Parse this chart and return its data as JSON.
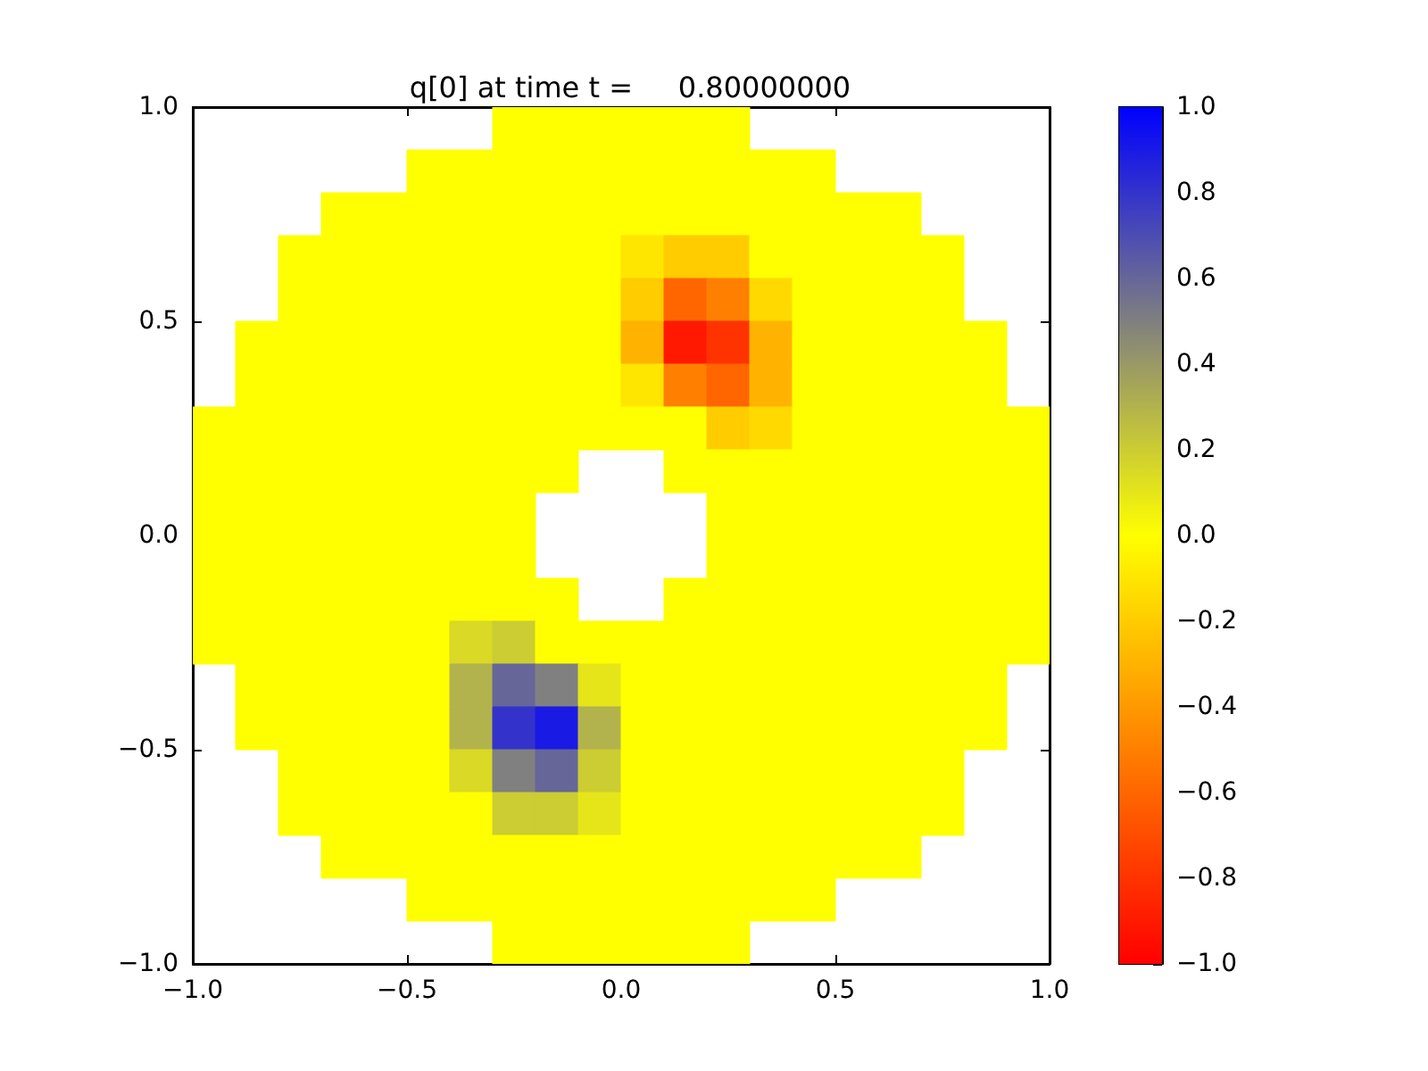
{
  "chart_data": {
    "type": "heatmap",
    "title": "q[0] at time t =     0.80000000",
    "x": [
      -0.95,
      -0.85,
      -0.75,
      -0.65,
      -0.55,
      -0.45,
      -0.35,
      -0.25,
      -0.15,
      -0.05,
      0.05,
      0.15,
      0.25,
      0.35,
      0.45,
      0.55,
      0.65,
      0.75,
      0.85,
      0.95
    ],
    "y": [
      0.95,
      0.85,
      0.75,
      0.65,
      0.55,
      0.45,
      0.35,
      0.25,
      0.15,
      0.05,
      -0.05,
      -0.15,
      -0.25,
      -0.35,
      -0.45,
      -0.55,
      -0.65,
      -0.75,
      -0.85,
      -0.95
    ],
    "cells": [
      [
        null,
        null,
        null,
        null,
        null,
        null,
        null,
        0,
        0,
        0,
        0,
        0,
        0,
        null,
        null,
        null,
        null,
        null,
        null,
        null
      ],
      [
        null,
        null,
        null,
        null,
        null,
        0,
        0,
        0,
        0,
        0,
        0,
        0,
        0,
        0,
        0,
        null,
        null,
        null,
        null,
        null
      ],
      [
        null,
        null,
        null,
        0,
        0,
        0,
        0,
        0,
        0,
        0,
        0,
        0,
        0,
        0,
        0,
        0,
        0,
        null,
        null,
        null
      ],
      [
        null,
        null,
        0,
        0,
        0,
        0,
        0,
        0,
        0,
        0,
        -0.1,
        -0.2,
        -0.2,
        0,
        0,
        0,
        0,
        0,
        null,
        null
      ],
      [
        null,
        null,
        0,
        0,
        0,
        0,
        0,
        0,
        0,
        0,
        -0.2,
        -0.6,
        -0.5,
        -0.15,
        0,
        0,
        0,
        0,
        null,
        null
      ],
      [
        null,
        0,
        0,
        0,
        0,
        0,
        0,
        0,
        0,
        0,
        -0.3,
        -0.9,
        -0.8,
        -0.3,
        0,
        0,
        0,
        0,
        0,
        null
      ],
      [
        null,
        0,
        0,
        0,
        0,
        0,
        0,
        0,
        0,
        0,
        -0.1,
        -0.5,
        -0.6,
        -0.3,
        0,
        0,
        0,
        0,
        0,
        null
      ],
      [
        0,
        0,
        0,
        0,
        0,
        0,
        0,
        0,
        0,
        0,
        0,
        0,
        -0.2,
        -0.15,
        0,
        0,
        0,
        0,
        0,
        0
      ],
      [
        0,
        0,
        0,
        0,
        0,
        0,
        0,
        0,
        0,
        null,
        null,
        0,
        0,
        0,
        0,
        0,
        0,
        0,
        0,
        0
      ],
      [
        0,
        0,
        0,
        0,
        0,
        0,
        0,
        0,
        null,
        null,
        null,
        null,
        0,
        0,
        0,
        0,
        0,
        0,
        0,
        0
      ],
      [
        0,
        0,
        0,
        0,
        0,
        0,
        0,
        0,
        null,
        null,
        null,
        null,
        0,
        0,
        0,
        0,
        0,
        0,
        0,
        0
      ],
      [
        0,
        0,
        0,
        0,
        0,
        0,
        0,
        0,
        0,
        null,
        null,
        0,
        0,
        0,
        0,
        0,
        0,
        0,
        0,
        0
      ],
      [
        0,
        0,
        0,
        0,
        0,
        0,
        0.15,
        0.2,
        0,
        0,
        0,
        0,
        0,
        0,
        0,
        0,
        0,
        0,
        0,
        0
      ],
      [
        null,
        0,
        0,
        0,
        0,
        0,
        0.3,
        0.6,
        0.5,
        0.1,
        0,
        0,
        0,
        0,
        0,
        0,
        0,
        0,
        0,
        null
      ],
      [
        null,
        0,
        0,
        0,
        0,
        0,
        0.3,
        0.8,
        0.9,
        0.3,
        0,
        0,
        0,
        0,
        0,
        0,
        0,
        0,
        0,
        null
      ],
      [
        null,
        null,
        0,
        0,
        0,
        0,
        0.15,
        0.5,
        0.6,
        0.2,
        0,
        0,
        0,
        0,
        0,
        0,
        0,
        0,
        null,
        null
      ],
      [
        null,
        null,
        0,
        0,
        0,
        0,
        0,
        0.2,
        0.2,
        0.1,
        0,
        0,
        0,
        0,
        0,
        0,
        0,
        0,
        null,
        null
      ],
      [
        null,
        null,
        null,
        0,
        0,
        0,
        0,
        0,
        0,
        0,
        0,
        0,
        0,
        0,
        0,
        0,
        0,
        null,
        null,
        null
      ],
      [
        null,
        null,
        null,
        null,
        null,
        0,
        0,
        0,
        0,
        0,
        0,
        0,
        0,
        0,
        0,
        null,
        null,
        null,
        null,
        null
      ],
      [
        null,
        null,
        null,
        null,
        null,
        null,
        null,
        0,
        0,
        0,
        0,
        0,
        0,
        null,
        null,
        null,
        null,
        null,
        null,
        null
      ]
    ],
    "colors": [
      "#ff0000",
      "#ffff00",
      "#0000ff"
    ],
    "xlim": [
      -1,
      1
    ],
    "ylim": [
      -1,
      1
    ],
    "xticks": [
      {
        "value": -1,
        "label": "−1.0"
      },
      {
        "value": -0.5,
        "label": "−0.5"
      },
      {
        "value": 0,
        "label": "0.0"
      },
      {
        "value": 0.5,
        "label": "0.5"
      },
      {
        "value": 1,
        "label": "1.0"
      }
    ],
    "yticks": [
      {
        "value": -1,
        "label": "−1.0"
      },
      {
        "value": -0.5,
        "label": "−0.5"
      },
      {
        "value": 0,
        "label": "0.0"
      },
      {
        "value": 0.5,
        "label": "0.5"
      },
      {
        "value": 1,
        "label": "1.0"
      }
    ],
    "clim": [
      -1,
      1
    ],
    "cticks": [
      {
        "value": -1,
        "label": "−1.0"
      },
      {
        "value": -0.8,
        "label": "−0.8"
      },
      {
        "value": -0.6,
        "label": "−0.6"
      },
      {
        "value": -0.4,
        "label": "−0.4"
      },
      {
        "value": -0.2,
        "label": "−0.2"
      },
      {
        "value": 0,
        "label": "0.0"
      },
      {
        "value": 0.2,
        "label": "0.2"
      },
      {
        "value": 0.4,
        "label": "0.4"
      },
      {
        "value": 0.6,
        "label": "0.6"
      },
      {
        "value": 0.8,
        "label": "0.8"
      },
      {
        "value": 1,
        "label": "1.0"
      }
    ]
  }
}
